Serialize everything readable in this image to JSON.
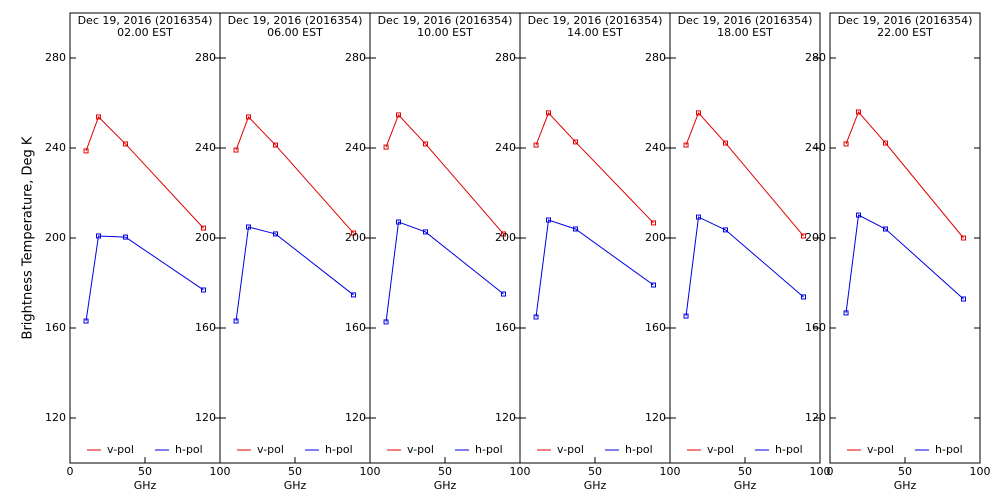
{
  "chart_data": [
    {
      "type": "line",
      "title": "Dec 19, 2016 (2016354)",
      "subtitle": "02.00 EST",
      "xlabel": "GHz",
      "ylabel": "Brightness Temperature, Deg K",
      "x": [
        10.7,
        19,
        37,
        89
      ],
      "series": [
        {
          "name": "v-pol",
          "color": "#e00000",
          "values": [
            238.7,
            253.8,
            241.8,
            204.4
          ]
        },
        {
          "name": "h-pol",
          "color": "#0000e0",
          "values": [
            163.1,
            200.9,
            200.4,
            176.9
          ]
        }
      ],
      "xlim": [
        0,
        100
      ],
      "ylim": [
        100,
        300
      ],
      "xticks": [
        0,
        50,
        100
      ],
      "yticks": [
        120,
        160,
        200,
        240,
        280
      ]
    },
    {
      "type": "line",
      "title": "Dec 19, 2016 (2016354)",
      "subtitle": "06.00 EST",
      "xlabel": "GHz",
      "x": [
        10.7,
        19,
        37,
        89
      ],
      "series": [
        {
          "name": "v-pol",
          "color": "#e00000",
          "values": [
            239.1,
            253.8,
            241.3,
            202.2
          ]
        },
        {
          "name": "h-pol",
          "color": "#0000e0",
          "values": [
            163.1,
            204.9,
            201.8,
            174.7
          ]
        }
      ],
      "xlim": [
        0,
        100
      ],
      "ylim": [
        100,
        300
      ],
      "xticks": [
        50,
        100
      ],
      "yticks": [
        120,
        160,
        200,
        240,
        280
      ]
    },
    {
      "type": "line",
      "title": "Dec 19, 2016 (2016354)",
      "subtitle": "10.00 EST",
      "xlabel": "GHz",
      "x": [
        10.7,
        19,
        37,
        89
      ],
      "series": [
        {
          "name": "v-pol",
          "color": "#e00000",
          "values": [
            240.4,
            254.7,
            241.8,
            201.8
          ]
        },
        {
          "name": "h-pol",
          "color": "#0000e0",
          "values": [
            162.7,
            207.1,
            202.7,
            175.1
          ]
        }
      ],
      "xlim": [
        0,
        100
      ],
      "ylim": [
        100,
        300
      ],
      "xticks": [
        50,
        100
      ],
      "yticks": [
        120,
        160,
        200,
        240,
        280
      ]
    },
    {
      "type": "line",
      "title": "Dec 19, 2016 (2016354)",
      "subtitle": "14.00 EST",
      "xlabel": "GHz",
      "x": [
        10.7,
        19,
        37,
        89
      ],
      "series": [
        {
          "name": "v-pol",
          "color": "#e00000",
          "values": [
            241.3,
            255.6,
            242.7,
            206.7
          ]
        },
        {
          "name": "h-pol",
          "color": "#0000e0",
          "values": [
            164.9,
            208,
            204,
            179.1
          ]
        }
      ],
      "xlim": [
        0,
        100
      ],
      "ylim": [
        100,
        300
      ],
      "xticks": [
        50,
        100
      ],
      "yticks": [
        120,
        160,
        200,
        240,
        280
      ]
    },
    {
      "type": "line",
      "title": "Dec 19, 2016 (2016354)",
      "subtitle": "18.00 EST",
      "xlabel": "GHz",
      "x": [
        10.7,
        19,
        37,
        89
      ],
      "series": [
        {
          "name": "v-pol",
          "color": "#e00000",
          "values": [
            241.3,
            255.6,
            242.2,
            200.9
          ]
        },
        {
          "name": "h-pol",
          "color": "#0000e0",
          "values": [
            165.3,
            209.3,
            203.6,
            173.8
          ]
        }
      ],
      "xlim": [
        0,
        100
      ],
      "ylim": [
        100,
        300
      ],
      "xticks": [
        50,
        100
      ],
      "yticks": [
        120,
        160,
        200,
        240,
        280
      ]
    },
    {
      "type": "line",
      "title": "Dec 19, 2016 (2016354)",
      "subtitle": "22.00 EST",
      "xlabel": "GHz",
      "x": [
        10.7,
        19,
        37,
        89
      ],
      "series": [
        {
          "name": "v-pol",
          "color": "#e00000",
          "values": [
            241.8,
            256,
            242.2,
            200
          ]
        },
        {
          "name": "h-pol",
          "color": "#0000e0",
          "values": [
            166.7,
            210.2,
            204,
            172.9
          ]
        }
      ],
      "xlim": [
        0,
        100
      ],
      "ylim": [
        100,
        300
      ],
      "xticks": [
        0,
        50,
        100
      ],
      "yticks": [
        120,
        160,
        200,
        240,
        280
      ]
    }
  ]
}
